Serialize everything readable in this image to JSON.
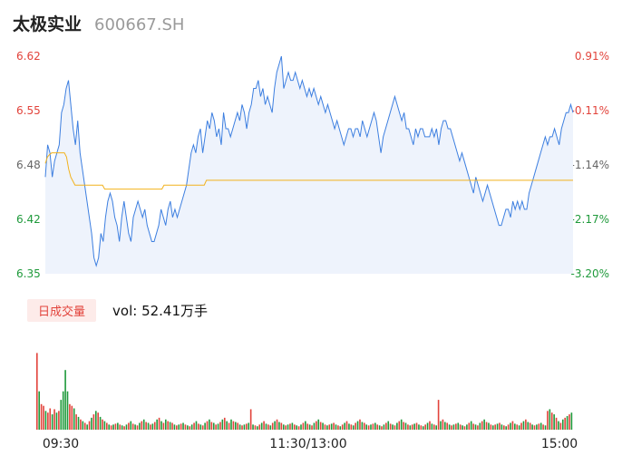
{
  "header": {
    "name": "太极实业",
    "code": "600667.SH"
  },
  "volume_panel": {
    "tag_label": "日成交量",
    "vol_prefix": "vol: ",
    "vol_value": "52.41万手"
  },
  "colors": {
    "up": "#e2433b",
    "down": "#1f9a3b",
    "price_line": "#3d7fe0",
    "avg_line": "#f2b21d",
    "fill": "#eef3fc",
    "flat": "#666666"
  },
  "chart_data": [
    {
      "type": "line",
      "title": "",
      "x_ticks": [
        "09:30",
        "11:30/13:00",
        "15:00"
      ],
      "y_left_ticks": [
        "6.62",
        "6.55",
        "6.48",
        "6.42",
        "6.35"
      ],
      "y_right_ticks": [
        "0.91%",
        "-0.11%",
        "-1.14%",
        "-2.17%",
        "-3.20%"
      ],
      "ylim": [
        6.35,
        6.62
      ],
      "reference_price": 6.487,
      "series": [
        {
          "key": "price",
          "values": [
            6.47,
            6.51,
            6.5,
            6.47,
            6.49,
            6.5,
            6.51,
            6.55,
            6.56,
            6.58,
            6.59,
            6.56,
            6.53,
            6.51,
            6.54,
            6.5,
            6.48,
            6.46,
            6.44,
            6.42,
            6.4,
            6.37,
            6.36,
            6.37,
            6.4,
            6.39,
            6.42,
            6.44,
            6.45,
            6.44,
            6.42,
            6.41,
            6.39,
            6.42,
            6.44,
            6.42,
            6.4,
            6.39,
            6.42,
            6.43,
            6.44,
            6.43,
            6.42,
            6.43,
            6.41,
            6.4,
            6.39,
            6.39,
            6.4,
            6.41,
            6.43,
            6.42,
            6.41,
            6.43,
            6.44,
            6.42,
            6.43,
            6.42,
            6.43,
            6.44,
            6.45,
            6.46,
            6.48,
            6.5,
            6.51,
            6.5,
            6.52,
            6.53,
            6.5,
            6.52,
            6.54,
            6.53,
            6.55,
            6.54,
            6.52,
            6.53,
            6.51,
            6.55,
            6.53,
            6.53,
            6.52,
            6.53,
            6.54,
            6.55,
            6.54,
            6.56,
            6.55,
            6.53,
            6.55,
            6.56,
            6.58,
            6.58,
            6.59,
            6.57,
            6.58,
            6.56,
            6.57,
            6.56,
            6.55,
            6.58,
            6.6,
            6.61,
            6.62,
            6.58,
            6.59,
            6.6,
            6.59,
            6.59,
            6.6,
            6.59,
            6.58,
            6.59,
            6.58,
            6.57,
            6.58,
            6.57,
            6.58,
            6.57,
            6.56,
            6.57,
            6.56,
            6.55,
            6.56,
            6.55,
            6.54,
            6.53,
            6.54,
            6.53,
            6.52,
            6.51,
            6.52,
            6.53,
            6.53,
            6.52,
            6.53,
            6.53,
            6.52,
            6.54,
            6.53,
            6.52,
            6.53,
            6.54,
            6.55,
            6.54,
            6.52,
            6.5,
            6.52,
            6.53,
            6.54,
            6.55,
            6.56,
            6.57,
            6.56,
            6.55,
            6.54,
            6.55,
            6.53,
            6.53,
            6.52,
            6.51,
            6.53,
            6.52,
            6.53,
            6.53,
            6.52,
            6.52,
            6.52,
            6.53,
            6.52,
            6.53,
            6.51,
            6.53,
            6.54,
            6.54,
            6.53,
            6.53,
            6.52,
            6.51,
            6.5,
            6.49,
            6.5,
            6.49,
            6.48,
            6.47,
            6.46,
            6.45,
            6.47,
            6.46,
            6.45,
            6.44,
            6.45,
            6.46,
            6.45,
            6.44,
            6.43,
            6.42,
            6.41,
            6.41,
            6.42,
            6.43,
            6.43,
            6.42,
            6.44,
            6.43,
            6.44,
            6.43,
            6.44,
            6.43,
            6.43,
            6.45,
            6.46,
            6.47,
            6.48,
            6.49,
            6.5,
            6.51,
            6.52,
            6.51,
            6.52,
            6.52,
            6.53,
            6.52,
            6.51,
            6.53,
            6.54,
            6.55,
            6.55,
            6.56,
            6.55
          ],
          "n_points": 242
        },
        {
          "key": "average",
          "values": [
            6.487,
            6.495,
            6.498,
            6.5,
            6.5,
            6.5,
            6.5,
            6.5,
            6.5,
            6.5,
            6.495,
            6.48,
            6.47,
            6.465,
            6.46,
            6.46,
            6.46,
            6.46,
            6.46,
            6.46,
            6.46,
            6.46,
            6.46,
            6.46,
            6.46,
            6.46,
            6.46,
            6.46,
            6.455,
            6.455,
            6.455,
            6.455,
            6.455,
            6.455,
            6.455,
            6.455,
            6.455,
            6.455,
            6.455,
            6.455,
            6.455,
            6.455,
            6.455,
            6.455,
            6.455,
            6.455,
            6.455,
            6.455,
            6.455,
            6.455,
            6.455,
            6.455,
            6.455,
            6.455,
            6.455,
            6.455,
            6.46,
            6.46,
            6.46,
            6.46,
            6.46,
            6.46,
            6.46,
            6.46,
            6.46,
            6.46,
            6.46,
            6.46,
            6.46,
            6.46,
            6.46,
            6.46,
            6.46,
            6.46,
            6.46,
            6.46,
            6.466,
            6.466,
            6.466,
            6.466,
            6.466,
            6.466,
            6.466,
            6.466,
            6.466,
            6.466,
            6.466,
            6.466,
            6.466,
            6.466,
            6.466,
            6.466,
            6.466,
            6.466,
            6.466,
            6.466,
            6.466,
            6.466,
            6.466,
            6.466,
            6.466,
            6.466,
            6.466,
            6.466,
            6.466,
            6.466,
            6.466,
            6.466,
            6.466,
            6.466,
            6.466,
            6.466,
            6.466,
            6.466,
            6.466,
            6.466,
            6.466,
            6.466,
            6.466,
            6.466,
            6.466,
            6.466,
            6.466,
            6.466,
            6.466,
            6.466,
            6.466,
            6.466,
            6.466,
            6.466,
            6.466,
            6.466,
            6.466,
            6.466,
            6.466,
            6.466,
            6.466,
            6.466,
            6.466,
            6.466,
            6.466,
            6.466,
            6.466,
            6.466,
            6.466,
            6.466,
            6.466,
            6.466,
            6.466,
            6.466,
            6.466,
            6.466,
            6.466,
            6.466,
            6.466,
            6.466,
            6.466,
            6.466,
            6.466,
            6.466,
            6.466,
            6.466,
            6.466,
            6.466,
            6.466,
            6.466,
            6.466,
            6.466,
            6.466,
            6.466,
            6.466,
            6.466,
            6.466,
            6.466,
            6.466,
            6.466,
            6.466,
            6.466,
            6.466,
            6.466,
            6.466,
            6.466,
            6.466,
            6.466,
            6.466,
            6.466,
            6.466,
            6.466,
            6.466,
            6.466,
            6.466,
            6.466,
            6.466,
            6.466,
            6.466,
            6.466,
            6.466,
            6.466,
            6.466,
            6.466,
            6.466,
            6.466,
            6.466,
            6.466,
            6.466,
            6.466,
            6.466,
            6.466,
            6.466,
            6.466,
            6.466,
            6.466,
            6.466,
            6.466,
            6.466,
            6.466,
            6.466,
            6.466,
            6.466,
            6.466,
            6.466,
            6.466,
            6.466,
            6.466,
            6.466,
            6.466,
            6.466,
            6.466,
            6.466,
            6.466,
            6.466,
            6.466,
            6.466,
            6.466,
            6.466,
            6.466,
            6.466,
            6.466,
            6.466,
            6.466,
            6.466,
            6.466,
            6.466,
            6.466,
            6.466,
            6.466,
            6.466,
            6.466,
            6.466,
            6.466
          ]
        }
      ],
      "grid": false
    },
    {
      "type": "bar",
      "title": "",
      "series": [
        {
          "key": "volume",
          "values": [
            90,
            45,
            30,
            28,
            22,
            20,
            25,
            18,
            24,
            20,
            22,
            35,
            45,
            70,
            45,
            30,
            28,
            25,
            18,
            15,
            12,
            10,
            8,
            6,
            10,
            14,
            18,
            22,
            20,
            15,
            12,
            10,
            8,
            6,
            5,
            6,
            7,
            8,
            6,
            5,
            4,
            6,
            8,
            10,
            7,
            6,
            5,
            8,
            10,
            12,
            9,
            8,
            6,
            7,
            9,
            12,
            14,
            10,
            8,
            12,
            10,
            9,
            8,
            6,
            5,
            6,
            7,
            8,
            6,
            5,
            4,
            6,
            8,
            10,
            7,
            6,
            5,
            8,
            10,
            12,
            9,
            8,
            6,
            7,
            9,
            12,
            14,
            10,
            8,
            12,
            10,
            9,
            8,
            6,
            5,
            6,
            7,
            8,
            24,
            6,
            5,
            4,
            6,
            8,
            10,
            7,
            6,
            5,
            8,
            10,
            12,
            9,
            8,
            6,
            5,
            6,
            7,
            8,
            6,
            5,
            4,
            6,
            8,
            10,
            7,
            6,
            5,
            8,
            10,
            12,
            9,
            8,
            6,
            5,
            6,
            7,
            8,
            6,
            5,
            4,
            6,
            8,
            10,
            7,
            6,
            5,
            8,
            10,
            12,
            9,
            8,
            6,
            5,
            6,
            7,
            8,
            6,
            5,
            4,
            6,
            8,
            10,
            7,
            6,
            5,
            8,
            10,
            12,
            9,
            8,
            6,
            5,
            6,
            7,
            8,
            6,
            5,
            4,
            6,
            8,
            10,
            7,
            6,
            5,
            35,
            10,
            12,
            9,
            8,
            6,
            5,
            6,
            7,
            8,
            6,
            5,
            4,
            6,
            8,
            10,
            7,
            6,
            5,
            8,
            10,
            12,
            9,
            8,
            6,
            5,
            6,
            7,
            8,
            6,
            5,
            4,
            6,
            8,
            10,
            7,
            6,
            5,
            8,
            10,
            12,
            9,
            8,
            6,
            5,
            6,
            7,
            8,
            6,
            5,
            22,
            24,
            20,
            18,
            14,
            10,
            8,
            12,
            14,
            16,
            18,
            20
          ]
        }
      ],
      "direction": [
        "up",
        "down",
        "up",
        "up",
        "down",
        "up",
        "up",
        "down",
        "up",
        "down",
        "up",
        "down",
        "down",
        "down",
        "down",
        "up",
        "up",
        "down",
        "up",
        "down",
        "up",
        "down",
        "up",
        "down",
        "up",
        "down",
        "up",
        "down",
        "up",
        "down",
        "up",
        "down",
        "up",
        "down",
        "up",
        "down",
        "up",
        "down",
        "up",
        "down",
        "up",
        "down",
        "up",
        "down",
        "up",
        "down",
        "up",
        "down",
        "up",
        "down",
        "up",
        "down",
        "up",
        "down",
        "up",
        "down",
        "up",
        "down",
        "up",
        "down",
        "up",
        "down",
        "up",
        "down",
        "up",
        "down",
        "up",
        "down",
        "up",
        "down",
        "up",
        "down",
        "up",
        "down",
        "up",
        "down",
        "up",
        "down",
        "up",
        "down",
        "up",
        "down",
        "up",
        "down",
        "up",
        "down",
        "up",
        "down",
        "up",
        "down",
        "up",
        "down",
        "up",
        "down",
        "up",
        "down",
        "up",
        "down",
        "up",
        "down",
        "up",
        "down",
        "up",
        "down",
        "up",
        "down",
        "up",
        "down",
        "up",
        "down",
        "up",
        "down",
        "up",
        "down",
        "up",
        "down",
        "up",
        "down",
        "up",
        "down",
        "up",
        "down",
        "up",
        "down",
        "up",
        "down",
        "up",
        "down",
        "up",
        "down",
        "up",
        "down",
        "up",
        "down",
        "up",
        "down",
        "up",
        "down",
        "up",
        "down",
        "up",
        "down",
        "up",
        "down",
        "up",
        "down",
        "up",
        "down",
        "up",
        "down",
        "up",
        "down",
        "up",
        "down",
        "up",
        "down",
        "up",
        "down",
        "up",
        "down",
        "up",
        "down",
        "up",
        "down",
        "up",
        "down",
        "up",
        "down",
        "up",
        "down",
        "up",
        "down",
        "up",
        "down",
        "up",
        "down",
        "up",
        "down",
        "up",
        "down",
        "up",
        "down",
        "up",
        "down",
        "up",
        "down",
        "up",
        "down",
        "up",
        "down",
        "up",
        "down",
        "up",
        "down",
        "up",
        "down",
        "up",
        "down",
        "up",
        "down",
        "up",
        "down",
        "up",
        "down",
        "up",
        "down",
        "up",
        "down",
        "up",
        "down",
        "up",
        "down",
        "up",
        "down",
        "up",
        "down",
        "up",
        "down",
        "up",
        "down",
        "up",
        "down",
        "up",
        "down",
        "up",
        "down",
        "up",
        "down",
        "up",
        "down",
        "up",
        "down",
        "up",
        "down",
        "up",
        "down",
        "up",
        "down",
        "up",
        "down",
        "up",
        "down",
        "up",
        "down",
        "up",
        "down",
        "up",
        "down",
        "up",
        "down",
        "up",
        "down",
        "up",
        "down",
        "up",
        "down",
        "up",
        "down",
        "up",
        "down",
        "up",
        "down",
        "up",
        "down"
      ],
      "ylim": [
        0,
        100
      ]
    }
  ]
}
